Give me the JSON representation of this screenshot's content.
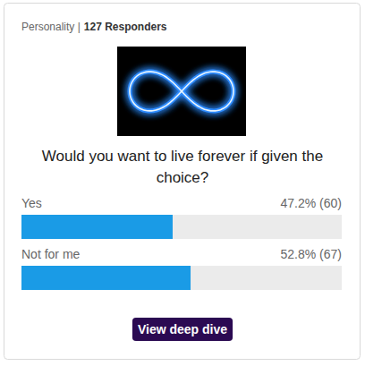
{
  "chart_data": {
    "type": "bar",
    "orientation": "horizontal",
    "title": "Would you want to live forever if given the choice?",
    "annotations": [
      "Personality |",
      "127 Responders",
      "View deep dive"
    ],
    "categories": [
      "Yes",
      "Not for me"
    ],
    "values": [
      47.2,
      52.8
    ],
    "value_labels": [
      "47.2% (60)",
      "52.8% (67)"
    ],
    "data_labels": true,
    "color": "#1a9be6",
    "xlim": [
      0,
      100
    ],
    "tick_labels": false,
    "grid": false
  }
}
